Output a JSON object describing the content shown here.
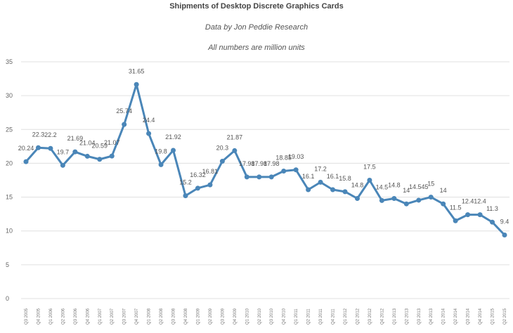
{
  "chart_data": {
    "type": "line",
    "title": "Shipments of Desktop Discrete Graphics Cards",
    "subtitle": "Data by Jon Peddie Research",
    "note": "All numbers are million units",
    "xlabel": "",
    "ylabel": "",
    "ylim": [
      0,
      35
    ],
    "yticks": [
      0,
      5,
      10,
      15,
      20,
      25,
      30,
      35
    ],
    "grid": true,
    "legend": "none",
    "categories": [
      "Q3 2005",
      "Q4 2005",
      "Q1 2006",
      "Q2 2006",
      "Q3 2006",
      "Q4 2006",
      "Q1 2007",
      "Q2 2007",
      "Q3 2007",
      "Q4 2007",
      "Q1 2008",
      "Q2 2008",
      "Q3 2008",
      "Q4 2008",
      "Q1 2009",
      "Q2 2009",
      "Q3 2009",
      "Q4 2009",
      "Q1 2010",
      "Q2 2010",
      "Q3 2010",
      "Q4 2010",
      "Q1 2011",
      "Q2 2011",
      "Q3 2011",
      "Q4 2011",
      "Q1 2012",
      "Q2 2012",
      "Q3 2012",
      "Q4 2012",
      "Q1 2013",
      "Q2 2013",
      "Q3 2013",
      "Q4 2013",
      "Q1 2014",
      "Q2 2014",
      "Q3 2014",
      "Q4 2014",
      "Q1 2015",
      "Q2 2015"
    ],
    "series": [
      {
        "name": "Shipments",
        "color": "#4a86b8",
        "values": [
          20.24,
          22.3,
          22.2,
          19.7,
          21.69,
          21.04,
          20.59,
          21.07,
          25.74,
          31.65,
          24.4,
          19.8,
          21.92,
          15.2,
          16.32,
          16.81,
          20.3,
          21.87,
          17.98,
          17.98,
          17.98,
          18.85,
          19.03,
          16.1,
          17.2,
          16.1,
          15.8,
          14.8,
          17.5,
          14.5,
          14.8,
          14,
          14.545,
          15,
          14,
          11.5,
          12.4,
          12.4,
          11.3,
          9.4
        ]
      }
    ]
  }
}
